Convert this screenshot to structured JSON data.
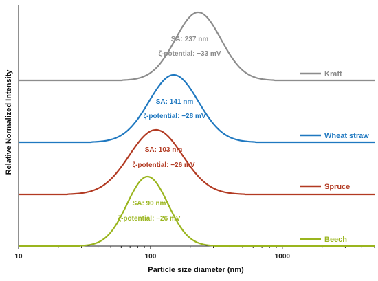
{
  "chart_data": {
    "type": "line",
    "title": "",
    "xlabel": "Particle size diameter (nm)",
    "ylabel": "Relative Normalized Intensity",
    "x_scale": "log",
    "xlim": [
      10,
      5000
    ],
    "x_ticks": [
      "10",
      "100",
      "1000"
    ],
    "grid": false,
    "legend_placement": "right",
    "series": [
      {
        "name": "Kraft",
        "color": "#8c8c8c",
        "peak_x": 230,
        "x_range": [
          80,
          700
        ],
        "annotation": [
          "SA: 237 nm",
          "ζ-potential: −33 mV"
        ]
      },
      {
        "name": "Wheat straw",
        "color": "#1f78c0",
        "peak_x": 150,
        "x_range": [
          45,
          500
        ],
        "annotation": [
          "SA: 141 nm",
          "ζ-potential: −28 mV"
        ]
      },
      {
        "name": "Spruce",
        "color": "#b23a22",
        "peak_x": 110,
        "x_range": [
          30,
          380
        ],
        "annotation": [
          "SA: 103 nm",
          "ζ-potential: −26 mV"
        ]
      },
      {
        "name": "Beech",
        "color": "#9ab51e",
        "peak_x": 95,
        "x_range": [
          35,
          250
        ],
        "annotation": [
          "SA: 90 nm",
          "ζ-potential: −26 mV"
        ]
      }
    ]
  }
}
